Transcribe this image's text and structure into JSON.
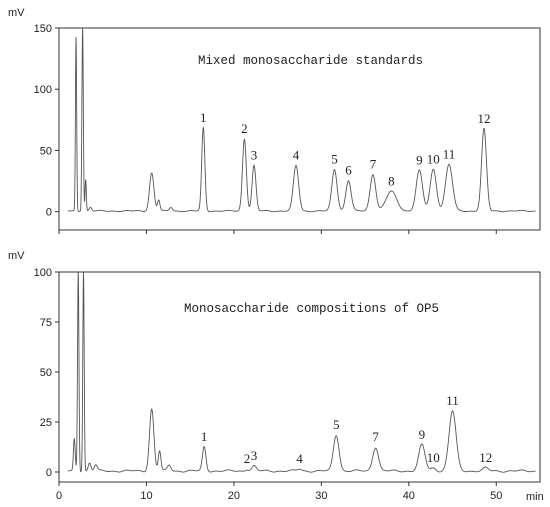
{
  "chart_data": [
    {
      "type": "line",
      "panel": "top",
      "annotation": "Mixed monosaccharide standards",
      "ylabel": "mV",
      "xlim": [
        0,
        55
      ],
      "ylim": [
        -15,
        150
      ],
      "yticks": [
        0,
        50,
        100,
        150
      ],
      "grid": false,
      "baseline": 0.5,
      "solvent_peaks": [
        {
          "x": 1.95,
          "y": 142,
          "w": 0.07
        },
        {
          "x": 2.7,
          "y": 150,
          "w": 0.08
        },
        {
          "x": 3.05,
          "y": 26,
          "w": 0.07
        }
      ],
      "minor_peaks": [
        {
          "x": 3.6,
          "y": 3,
          "w": 0.15
        },
        {
          "x": 10.6,
          "y": 31,
          "w": 0.25
        },
        {
          "x": 11.4,
          "y": 9,
          "w": 0.14
        },
        {
          "x": 12.8,
          "y": 3,
          "w": 0.18
        }
      ],
      "peaks": [
        {
          "label": "1",
          "x": 16.5,
          "y": 68,
          "w": 0.18
        },
        {
          "label": "2",
          "x": 21.2,
          "y": 59,
          "w": 0.22
        },
        {
          "label": "3",
          "x": 22.3,
          "y": 37,
          "w": 0.22
        },
        {
          "label": "4",
          "x": 27.1,
          "y": 37,
          "w": 0.3
        },
        {
          "label": "5",
          "x": 31.5,
          "y": 34,
          "w": 0.3
        },
        {
          "label": "6",
          "x": 33.1,
          "y": 25,
          "w": 0.3
        },
        {
          "label": "7",
          "x": 35.9,
          "y": 30,
          "w": 0.32
        },
        {
          "label": "8",
          "x": 38.0,
          "y": 16,
          "w": 0.6
        },
        {
          "label": "9",
          "x": 41.2,
          "y": 33,
          "w": 0.36
        },
        {
          "label": "10",
          "x": 42.8,
          "y": 34,
          "w": 0.36
        },
        {
          "label": "11",
          "x": 44.6,
          "y": 38,
          "w": 0.4
        },
        {
          "label": "12",
          "x": 48.6,
          "y": 67,
          "w": 0.28
        }
      ]
    },
    {
      "type": "line",
      "panel": "bottom",
      "annotation": "Monosaccharide compositions of OP5",
      "ylabel": "mV",
      "xlabel": "min",
      "xlim": [
        0,
        55
      ],
      "xticks": [
        0,
        10,
        20,
        30,
        40,
        50
      ],
      "ylim": [
        -5,
        100
      ],
      "yticks": [
        0,
        25,
        50,
        75,
        100
      ],
      "grid": false,
      "baseline": 0.5,
      "solvent_peaks": [
        {
          "x": 1.75,
          "y": 16,
          "w": 0.1
        },
        {
          "x": 2.2,
          "y": 100,
          "w": 0.08
        },
        {
          "x": 2.8,
          "y": 100,
          "w": 0.08
        },
        {
          "x": 3.5,
          "y": 4,
          "w": 0.15
        },
        {
          "x": 4.2,
          "y": 3,
          "w": 0.18
        }
      ],
      "minor_peaks": [
        {
          "x": 10.6,
          "y": 31,
          "w": 0.25
        },
        {
          "x": 11.5,
          "y": 10,
          "w": 0.15
        },
        {
          "x": 12.6,
          "y": 3,
          "w": 0.2
        }
      ],
      "peaks": [
        {
          "label": "1",
          "x": 16.6,
          "y": 12,
          "w": 0.2
        },
        {
          "label": "2",
          "x": 21.5,
          "y": 1,
          "w": 0.2
        },
        {
          "label": "3",
          "x": 22.3,
          "y": 2.5,
          "w": 0.25
        },
        {
          "label": "4",
          "x": 27.5,
          "y": 1,
          "w": 0.25
        },
        {
          "label": "5",
          "x": 31.7,
          "y": 18,
          "w": 0.32
        },
        {
          "label": "7",
          "x": 36.2,
          "y": 12,
          "w": 0.33
        },
        {
          "label": "9",
          "x": 41.5,
          "y": 13,
          "w": 0.36
        },
        {
          "label": "10",
          "x": 42.8,
          "y": 1.5,
          "w": 0.3
        },
        {
          "label": "11",
          "x": 45.0,
          "y": 30,
          "w": 0.4
        },
        {
          "label": "12",
          "x": 48.8,
          "y": 1.5,
          "w": 0.3
        }
      ]
    }
  ]
}
